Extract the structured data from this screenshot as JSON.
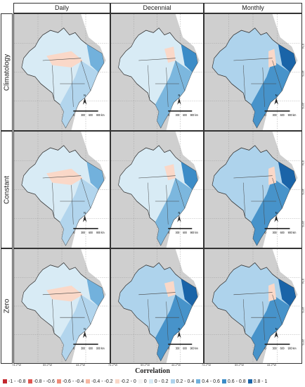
{
  "columns": [
    "Daily",
    "Decennial",
    "Monthly"
  ],
  "rows": [
    "Climatology",
    "Constant",
    "Zero"
  ],
  "panel_text": {
    "north": "N",
    "scale_labels": [
      "0",
      "300",
      "600",
      "900 km"
    ]
  },
  "longitude_ticks": [
    "74.2°W",
    "59.2°W",
    "44.2°W"
  ],
  "latitude_ticks": [
    "5°N",
    "15°S",
    "25°S"
  ],
  "legend": {
    "title": "Correlation",
    "items": [
      {
        "label": "-1 - -0.8",
        "color": "#c2272d"
      },
      {
        "label": "-0.8 - -0.6",
        "color": "#e0564f"
      },
      {
        "label": "-0.6 - -0.4",
        "color": "#f08c79"
      },
      {
        "label": "-0.4 - -0.2",
        "color": "#f7b9a3"
      },
      {
        "label": "-0.2 - 0",
        "color": "#fad8c8"
      },
      {
        "label": "0",
        "color": "#f4f4f4"
      },
      {
        "label": "0 - 0.2",
        "color": "#d8ebf5"
      },
      {
        "label": "0.2 - 0.4",
        "color": "#aed3ec"
      },
      {
        "label": "0.4 - 0.6",
        "color": "#72b1dc"
      },
      {
        "label": "0.6 - 0.8",
        "color": "#3c8cc7"
      },
      {
        "label": "0.8 - 1",
        "color": "#1a64a8"
      }
    ]
  },
  "colors": {
    "background_land": "#cfcfcf",
    "ocean": "#ffffff",
    "border": "#333333"
  }
}
